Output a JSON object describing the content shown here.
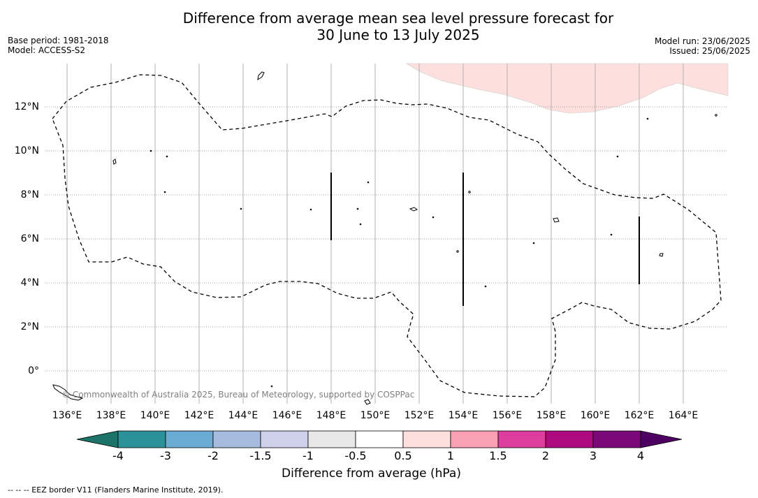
{
  "header": {
    "title_line1": "Difference from average mean sea level pressure forecast for",
    "title_line2": "30 June to 13 July 2025",
    "base_period": "Base period: 1981-2018",
    "model": "Model: ACCESS-S2",
    "model_run": "Model run: 23/06/2025",
    "issued": "Issued: 25/06/2025"
  },
  "map": {
    "longitude_labels": [
      "136°E",
      "138°E",
      "140°E",
      "142°E",
      "144°E",
      "146°E",
      "148°E",
      "150°E",
      "152°E",
      "154°E",
      "156°E",
      "158°E",
      "160°E",
      "162°E",
      "164°E"
    ],
    "latitude_labels": [
      "12°N",
      "10°N",
      "8°N",
      "6°N",
      "4°N",
      "2°N",
      "0°"
    ],
    "lon_range": [
      135,
      165.3
    ],
    "lat_range": [
      -1.5,
      14.3
    ],
    "copyright": "© Commonwealth of Australia 2025, Bureau of Meteorology, supported by COSPPac",
    "anomaly_fill_color": "#fde0de",
    "anomaly_category": "0.5 to 1"
  },
  "colorbar": {
    "title": "Difference from average (hPa)",
    "tick_labels": [
      "-4",
      "-3",
      "-2",
      "-1.5",
      "-1",
      "-0.5",
      "0.5",
      "1",
      "1.5",
      "2",
      "3",
      "4"
    ],
    "colors": [
      "#1b7467",
      "#2a9298",
      "#6aaad3",
      "#a7bbdf",
      "#cdd0e8",
      "#e8e8e8",
      "#ffffff",
      "#fde0de",
      "#f9a0b5",
      "#dd3d9c",
      "#ae0a7f",
      "#7a0878",
      "#4d0062"
    ]
  },
  "legend": {
    "eez_text": "--  --  -- EEZ border V11 (Flanders Marine Institute, 2019)."
  }
}
